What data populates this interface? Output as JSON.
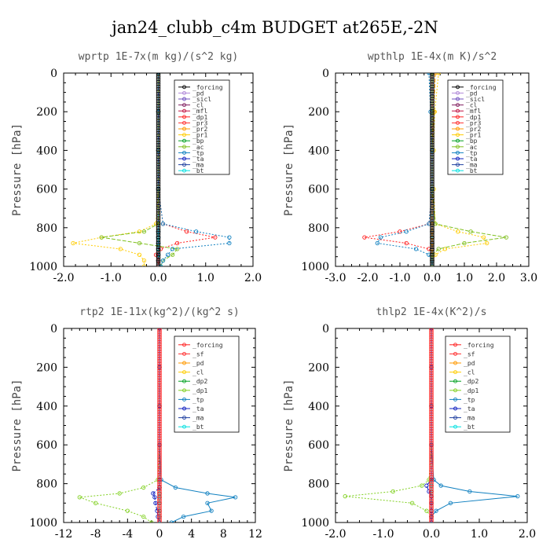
{
  "figure_title": "jan24_clubb_c4m  BUDGET at265E,-2N",
  "chart_data": [
    {
      "type": "line",
      "title": "wprtp  1E-7x(m kg)/(s^2 kg)",
      "ylabel": "Pressure [hPa]",
      "xlim": [
        -2.0,
        2.0
      ],
      "ylim": [
        1000,
        0
      ],
      "xticks": [
        "-2.0",
        "-1.0",
        "0.0",
        "1.0",
        "2.0"
      ],
      "yticks": [
        "0",
        "200",
        "400",
        "600",
        "800",
        "1000"
      ],
      "pressure": [
        0,
        200,
        400,
        600,
        780,
        820,
        850,
        880,
        910,
        940,
        970,
        1000
      ],
      "series": [
        {
          "name": "_forcing",
          "color": "#000000",
          "values": [
            0,
            0,
            0,
            0,
            0,
            0,
            0,
            0,
            0,
            0,
            0,
            0
          ]
        },
        {
          "name": "_pd",
          "color": "#b088d8",
          "values": [
            0,
            0,
            0,
            0,
            0,
            0,
            0,
            0,
            0,
            0,
            0,
            0
          ]
        },
        {
          "name": "_sicl",
          "color": "#7050c0",
          "values": [
            0,
            0,
            0,
            0,
            0,
            0,
            0,
            0,
            0,
            0,
            0,
            0
          ]
        },
        {
          "name": "_cl",
          "color": "#802060",
          "values": [
            0,
            0,
            0,
            0,
            0,
            0,
            0,
            0,
            0,
            0,
            0,
            0
          ]
        },
        {
          "name": "_mfl",
          "color": "#c01040",
          "values": [
            0,
            0,
            0,
            0,
            0,
            0,
            0,
            0,
            0,
            0,
            0,
            0
          ]
        },
        {
          "name": "_dp1",
          "color": "#ff2020",
          "values": [
            0,
            0,
            0,
            0,
            0.1,
            0.6,
            1.2,
            0.4,
            0.05,
            -0.05,
            0,
            0
          ]
        },
        {
          "name": "_pr3",
          "color": "#ff3030",
          "values": [
            0,
            0,
            0,
            0,
            0,
            0,
            0,
            0,
            0,
            0,
            0,
            0
          ]
        },
        {
          "name": "_pr2",
          "color": "#ff9900",
          "values": [
            0,
            0,
            0,
            0,
            0,
            0,
            0,
            0,
            0,
            0,
            0,
            0
          ]
        },
        {
          "name": "_pr1",
          "color": "#ffcc00",
          "values": [
            0,
            0,
            0,
            0,
            -0.05,
            -0.4,
            -1.2,
            -1.8,
            -0.8,
            -0.4,
            -0.3,
            -0.3
          ]
        },
        {
          "name": "_bp",
          "color": "#00a020",
          "values": [
            0,
            0,
            0,
            0,
            0,
            0,
            0,
            0,
            0,
            0,
            0,
            0
          ]
        },
        {
          "name": "_ac",
          "color": "#80c020",
          "values": [
            0,
            0,
            0,
            0,
            0,
            -0.3,
            -1.2,
            -0.4,
            0.4,
            0.3,
            0.1,
            0.05
          ]
        },
        {
          "name": "_tp",
          "color": "#1080c0",
          "values": [
            0,
            0,
            0,
            0,
            0.1,
            0.8,
            1.5,
            1.5,
            0.3,
            0.2,
            0.1,
            0.05
          ]
        },
        {
          "name": "_ta",
          "color": "#1020c0",
          "values": [
            0,
            0,
            0,
            0,
            0,
            0,
            0,
            0,
            0,
            0,
            0,
            0
          ]
        },
        {
          "name": "_ma",
          "color": "#2040a0",
          "values": [
            0,
            0,
            0,
            0,
            0,
            0,
            0,
            0,
            0,
            0,
            0,
            0
          ]
        },
        {
          "name": "_bt",
          "color": "#00e0e0",
          "values": [
            0,
            0,
            0,
            0,
            0,
            0,
            0,
            0,
            0,
            0,
            0,
            0
          ]
        }
      ]
    },
    {
      "type": "line",
      "title": "wpthlp  1E-4x(m K)/s^2",
      "ylabel": "Pressure [hPa]",
      "xlim": [
        -3.0,
        3.0
      ],
      "ylim": [
        1000,
        0
      ],
      "xticks": [
        "-3.0",
        "-2.0",
        "-1.0",
        "0.0",
        "1.0",
        "2.0",
        "3.0"
      ],
      "yticks": [
        "0",
        "200",
        "400",
        "600",
        "800",
        "1000"
      ],
      "pressure": [
        0,
        200,
        400,
        600,
        780,
        820,
        850,
        880,
        910,
        940,
        970,
        1000
      ],
      "series": [
        {
          "name": "_forcing",
          "color": "#000000",
          "values": [
            0,
            0,
            0,
            0,
            0,
            0,
            0,
            0,
            0,
            0,
            0,
            0
          ]
        },
        {
          "name": "_pd",
          "color": "#b088d8",
          "values": [
            0,
            0,
            0,
            0,
            0,
            0,
            0,
            0,
            0,
            0,
            0,
            0
          ]
        },
        {
          "name": "_sicl",
          "color": "#7050c0",
          "values": [
            0,
            0,
            0,
            0,
            0,
            0,
            0,
            0,
            0,
            0,
            0,
            0
          ]
        },
        {
          "name": "_cl",
          "color": "#802060",
          "values": [
            0,
            0,
            0,
            0,
            0,
            0,
            0,
            0,
            0,
            0,
            0,
            0
          ]
        },
        {
          "name": "_mfl",
          "color": "#c01040",
          "values": [
            0,
            0,
            0,
            0,
            0,
            0,
            0,
            0,
            0,
            0,
            0,
            0
          ]
        },
        {
          "name": "_dp1",
          "color": "#ff2020",
          "values": [
            0,
            0,
            0,
            0,
            -0.1,
            -1.0,
            -2.1,
            -0.8,
            -0.1,
            0,
            0,
            0
          ]
        },
        {
          "name": "_pr3",
          "color": "#ff3030",
          "values": [
            0,
            0,
            0,
            0,
            0,
            0,
            0,
            0,
            0,
            0,
            0,
            0
          ]
        },
        {
          "name": "_pr2",
          "color": "#ff9900",
          "values": [
            0.1,
            0.05,
            0,
            0,
            0,
            0,
            0,
            0,
            0,
            0,
            0,
            0
          ]
        },
        {
          "name": "_pr1",
          "color": "#ffcc00",
          "values": [
            0.2,
            0.08,
            0.05,
            0.05,
            0.1,
            0.8,
            1.6,
            1.7,
            0.4,
            0.1,
            0,
            0
          ]
        },
        {
          "name": "_bp",
          "color": "#00a020",
          "values": [
            0,
            0,
            0,
            0,
            0,
            0,
            0,
            0,
            0,
            0,
            0,
            0
          ]
        },
        {
          "name": "_ac",
          "color": "#80c020",
          "values": [
            0,
            0,
            0,
            0,
            0.1,
            1.2,
            2.3,
            1.0,
            0.2,
            0,
            0,
            0
          ]
        },
        {
          "name": "_tp",
          "color": "#1080c0",
          "values": [
            -0.1,
            -0.05,
            0,
            0,
            -0.1,
            -0.8,
            -1.6,
            -1.7,
            -0.5,
            -0.1,
            0,
            0
          ]
        },
        {
          "name": "_ta",
          "color": "#1020c0",
          "values": [
            0,
            0,
            0,
            0,
            0,
            0,
            0,
            0,
            0,
            0,
            0,
            0
          ]
        },
        {
          "name": "_ma",
          "color": "#2040a0",
          "values": [
            0,
            0,
            0,
            0,
            0,
            0,
            0,
            0,
            0,
            0,
            0,
            0
          ]
        },
        {
          "name": "_bt",
          "color": "#00e0e0",
          "values": [
            0,
            0,
            0,
            0,
            0,
            0,
            0,
            0,
            0,
            0,
            0,
            0
          ]
        }
      ]
    },
    {
      "type": "line",
      "title": "rtp2  1E-11x(kg^2)/(kg^2 s)",
      "ylabel": "Pressure [hPa]",
      "xlim": [
        -12,
        12
      ],
      "ylim": [
        1000,
        0
      ],
      "xticks": [
        "-12",
        "-8",
        "-4",
        "0",
        "4",
        "8",
        "12"
      ],
      "yticks": [
        "0",
        "200",
        "400",
        "600",
        "800",
        "1000"
      ],
      "pressure": [
        0,
        200,
        400,
        600,
        780,
        820,
        850,
        870,
        900,
        940,
        970,
        1000
      ],
      "series": [
        {
          "name": "_forcing",
          "color": "#ff2020",
          "values": [
            0,
            0,
            0,
            0,
            0,
            0,
            0,
            0,
            0,
            0,
            0,
            0
          ]
        },
        {
          "name": "_sf",
          "color": "#ff3030",
          "values": [
            0,
            0,
            0,
            0,
            0,
            0,
            0,
            0,
            0,
            0,
            0,
            0
          ]
        },
        {
          "name": "_pd",
          "color": "#ff9900",
          "values": [
            0,
            0,
            0,
            0,
            0,
            0,
            0,
            0,
            0,
            0,
            0,
            0
          ]
        },
        {
          "name": "_cl",
          "color": "#ffcc00",
          "values": [
            0,
            0,
            0,
            0,
            0,
            0,
            0,
            0,
            0,
            0,
            0,
            0
          ]
        },
        {
          "name": "_dp2",
          "color": "#00a020",
          "values": [
            0,
            0,
            0,
            0,
            0,
            0,
            0,
            0,
            0,
            0,
            0,
            0
          ]
        },
        {
          "name": "_dp1",
          "color": "#80d020",
          "values": [
            0,
            0,
            0,
            0,
            -0.2,
            -2.0,
            -5.0,
            -10.0,
            -8.0,
            -4.0,
            -2.0,
            -1.0
          ]
        },
        {
          "name": "_tp",
          "color": "#1080c0",
          "values": [
            0,
            0,
            0,
            0,
            0.2,
            2.0,
            6.0,
            9.5,
            6.0,
            6.5,
            3.0,
            1.5
          ]
        },
        {
          "name": "_ta",
          "color": "#1020c0",
          "values": [
            0,
            0,
            0,
            0,
            0,
            0,
            -0.8,
            -0.6,
            -0.5,
            -0.3,
            -0.2,
            0
          ]
        },
        {
          "name": "_ma",
          "color": "#2040a0",
          "values": [
            0,
            0,
            0,
            0,
            0,
            0,
            0,
            0,
            0,
            0,
            0,
            0
          ]
        },
        {
          "name": "_bt",
          "color": "#00e0e0",
          "values": [
            0,
            0,
            0,
            0,
            0,
            0,
            0,
            0,
            0,
            0,
            0,
            0
          ]
        }
      ]
    },
    {
      "type": "line",
      "title": "thlp2  1E-4x(K^2)/s",
      "ylabel": "Pressure [hPa]",
      "xlim": [
        -2.0,
        2.0
      ],
      "ylim": [
        1000,
        0
      ],
      "xticks": [
        "-2.0",
        "-1.0",
        "0.0",
        "1.0",
        "2.0"
      ],
      "yticks": [
        "0",
        "200",
        "400",
        "600",
        "800",
        "1000"
      ],
      "pressure": [
        0,
        200,
        400,
        600,
        780,
        810,
        840,
        865,
        900,
        940,
        970,
        1000
      ],
      "series": [
        {
          "name": "_forcing",
          "color": "#ff2020",
          "values": [
            0,
            0,
            0,
            0,
            0,
            0,
            0,
            0,
            0,
            0,
            0,
            0
          ]
        },
        {
          "name": "_sf",
          "color": "#ff3030",
          "values": [
            0,
            0,
            0,
            0,
            0,
            0,
            0,
            0,
            0,
            0,
            0,
            0
          ]
        },
        {
          "name": "_pd",
          "color": "#ff9900",
          "values": [
            0,
            0,
            0,
            0,
            0,
            0,
            0,
            0,
            0,
            0,
            0,
            0
          ]
        },
        {
          "name": "_cl",
          "color": "#ffcc00",
          "values": [
            0,
            0,
            0,
            0,
            0,
            0,
            0,
            0,
            0,
            0,
            0,
            0
          ]
        },
        {
          "name": "_dp2",
          "color": "#00a020",
          "values": [
            0,
            0,
            0,
            0,
            0,
            0,
            0,
            0,
            0,
            0,
            0,
            0
          ]
        },
        {
          "name": "_dp1",
          "color": "#80d020",
          "values": [
            0,
            0,
            0,
            0,
            -0.05,
            -0.2,
            -0.8,
            -1.8,
            -0.4,
            -0.1,
            0,
            0
          ]
        },
        {
          "name": "_tp",
          "color": "#1080c0",
          "values": [
            0,
            0,
            0,
            0,
            0.05,
            0.2,
            0.8,
            1.8,
            0.4,
            0.1,
            0,
            0
          ]
        },
        {
          "name": "_ta",
          "color": "#1020c0",
          "values": [
            0,
            0,
            0,
            0,
            0,
            -0.1,
            -0.05,
            0,
            0,
            0,
            0,
            0
          ]
        },
        {
          "name": "_ma",
          "color": "#2040a0",
          "values": [
            0,
            0,
            0,
            0,
            0,
            0,
            0,
            0,
            0,
            0,
            0,
            0
          ]
        },
        {
          "name": "_bt",
          "color": "#00e0e0",
          "values": [
            0,
            0,
            0,
            0,
            0,
            0,
            0,
            0,
            0,
            0,
            0,
            0
          ]
        }
      ]
    }
  ]
}
